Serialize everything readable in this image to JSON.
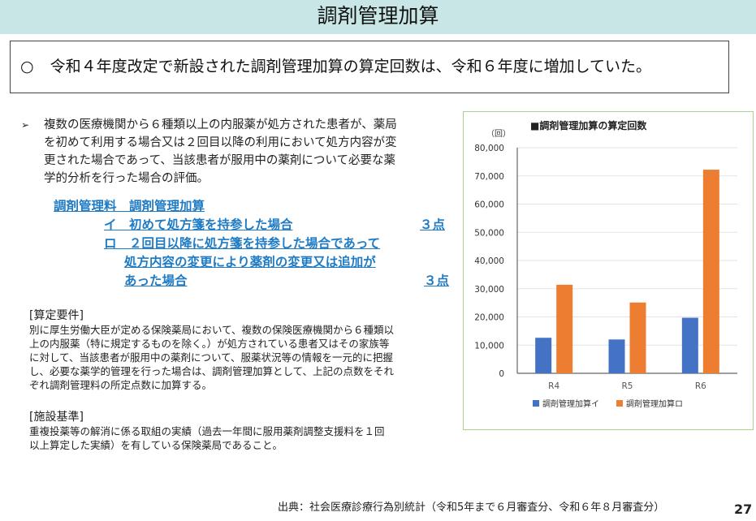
{
  "header": {
    "title": "調剤管理加算"
  },
  "summary": {
    "mark": "○",
    "text": "令和４年度改定で新設された調剤管理加算の算定回数は、令和６年度に増加していた。"
  },
  "description": {
    "bullet": "➢",
    "lines": [
      "複数の医療機関から６種類以上の内服薬が処方された患者が、薬局",
      "を初めて利用する場合又は２回目以降の利用において処方内容が変",
      "更された場合であって、当該患者が服用中の薬剤について必要な薬",
      "学的分析を行った場合の評価。"
    ]
  },
  "fees": {
    "heading": "調剤管理料　調剤管理加算",
    "i_label": "イ　初めて処方箋を持参した場合",
    "i_points": "３点",
    "ro_line1": "ロ　２回目以降に処方箋を持参した場合であって",
    "ro_line2": "処方内容の変更により薬剤の変更又は追加が",
    "ro_line3": "あった場合",
    "ro_points": "３点"
  },
  "requirements": {
    "heading": "[算定要件]",
    "lines": [
      " 別に厚生労働大臣が定める保険薬局において、複数の保険医療機関から６種類以",
      "上の内服薬（特に規定するものを除く。）が処方されている患者又はその家族等",
      "に対して、当該患者が服用中の薬剤について、服薬状況等の情報を一元的に把握",
      "し、必要な薬学的管理を行った場合は、調剤管理加算として、上記の点数をそれ",
      "ぞれ調剤管理料の所定点数に加算する。"
    ]
  },
  "facility": {
    "heading": "[施設基準]",
    "lines": [
      "重複投薬等の解消に係る取組の実績（過去一年間に服用薬剤調整支援料を１回",
      "以上算定した実績）を有している保険薬局であること。"
    ]
  },
  "source": "出典：社会医療診療行為別統計（令和5年まで６月審査分、令和６年８月審査分）",
  "page_number": "27",
  "chart_data": {
    "type": "bar",
    "title": "■調剤管理加算の算定回数",
    "ylabel": "（回）",
    "categories": [
      "R4",
      "R5",
      "R6"
    ],
    "series": [
      {
        "name": "調剤管理加算イ",
        "color": "#4472c4",
        "values": [
          12600,
          12000,
          19700
        ]
      },
      {
        "name": "調剤管理加算ロ",
        "color": "#ed7d31",
        "values": [
          31400,
          25100,
          72200
        ]
      }
    ],
    "ylim": [
      0,
      80000
    ],
    "yticks": [
      "0",
      "10,000",
      "20,000",
      "30,000",
      "40,000",
      "50,000",
      "60,000",
      "70,000",
      "80,000"
    ],
    "grid": true,
    "legend": "bottom"
  }
}
